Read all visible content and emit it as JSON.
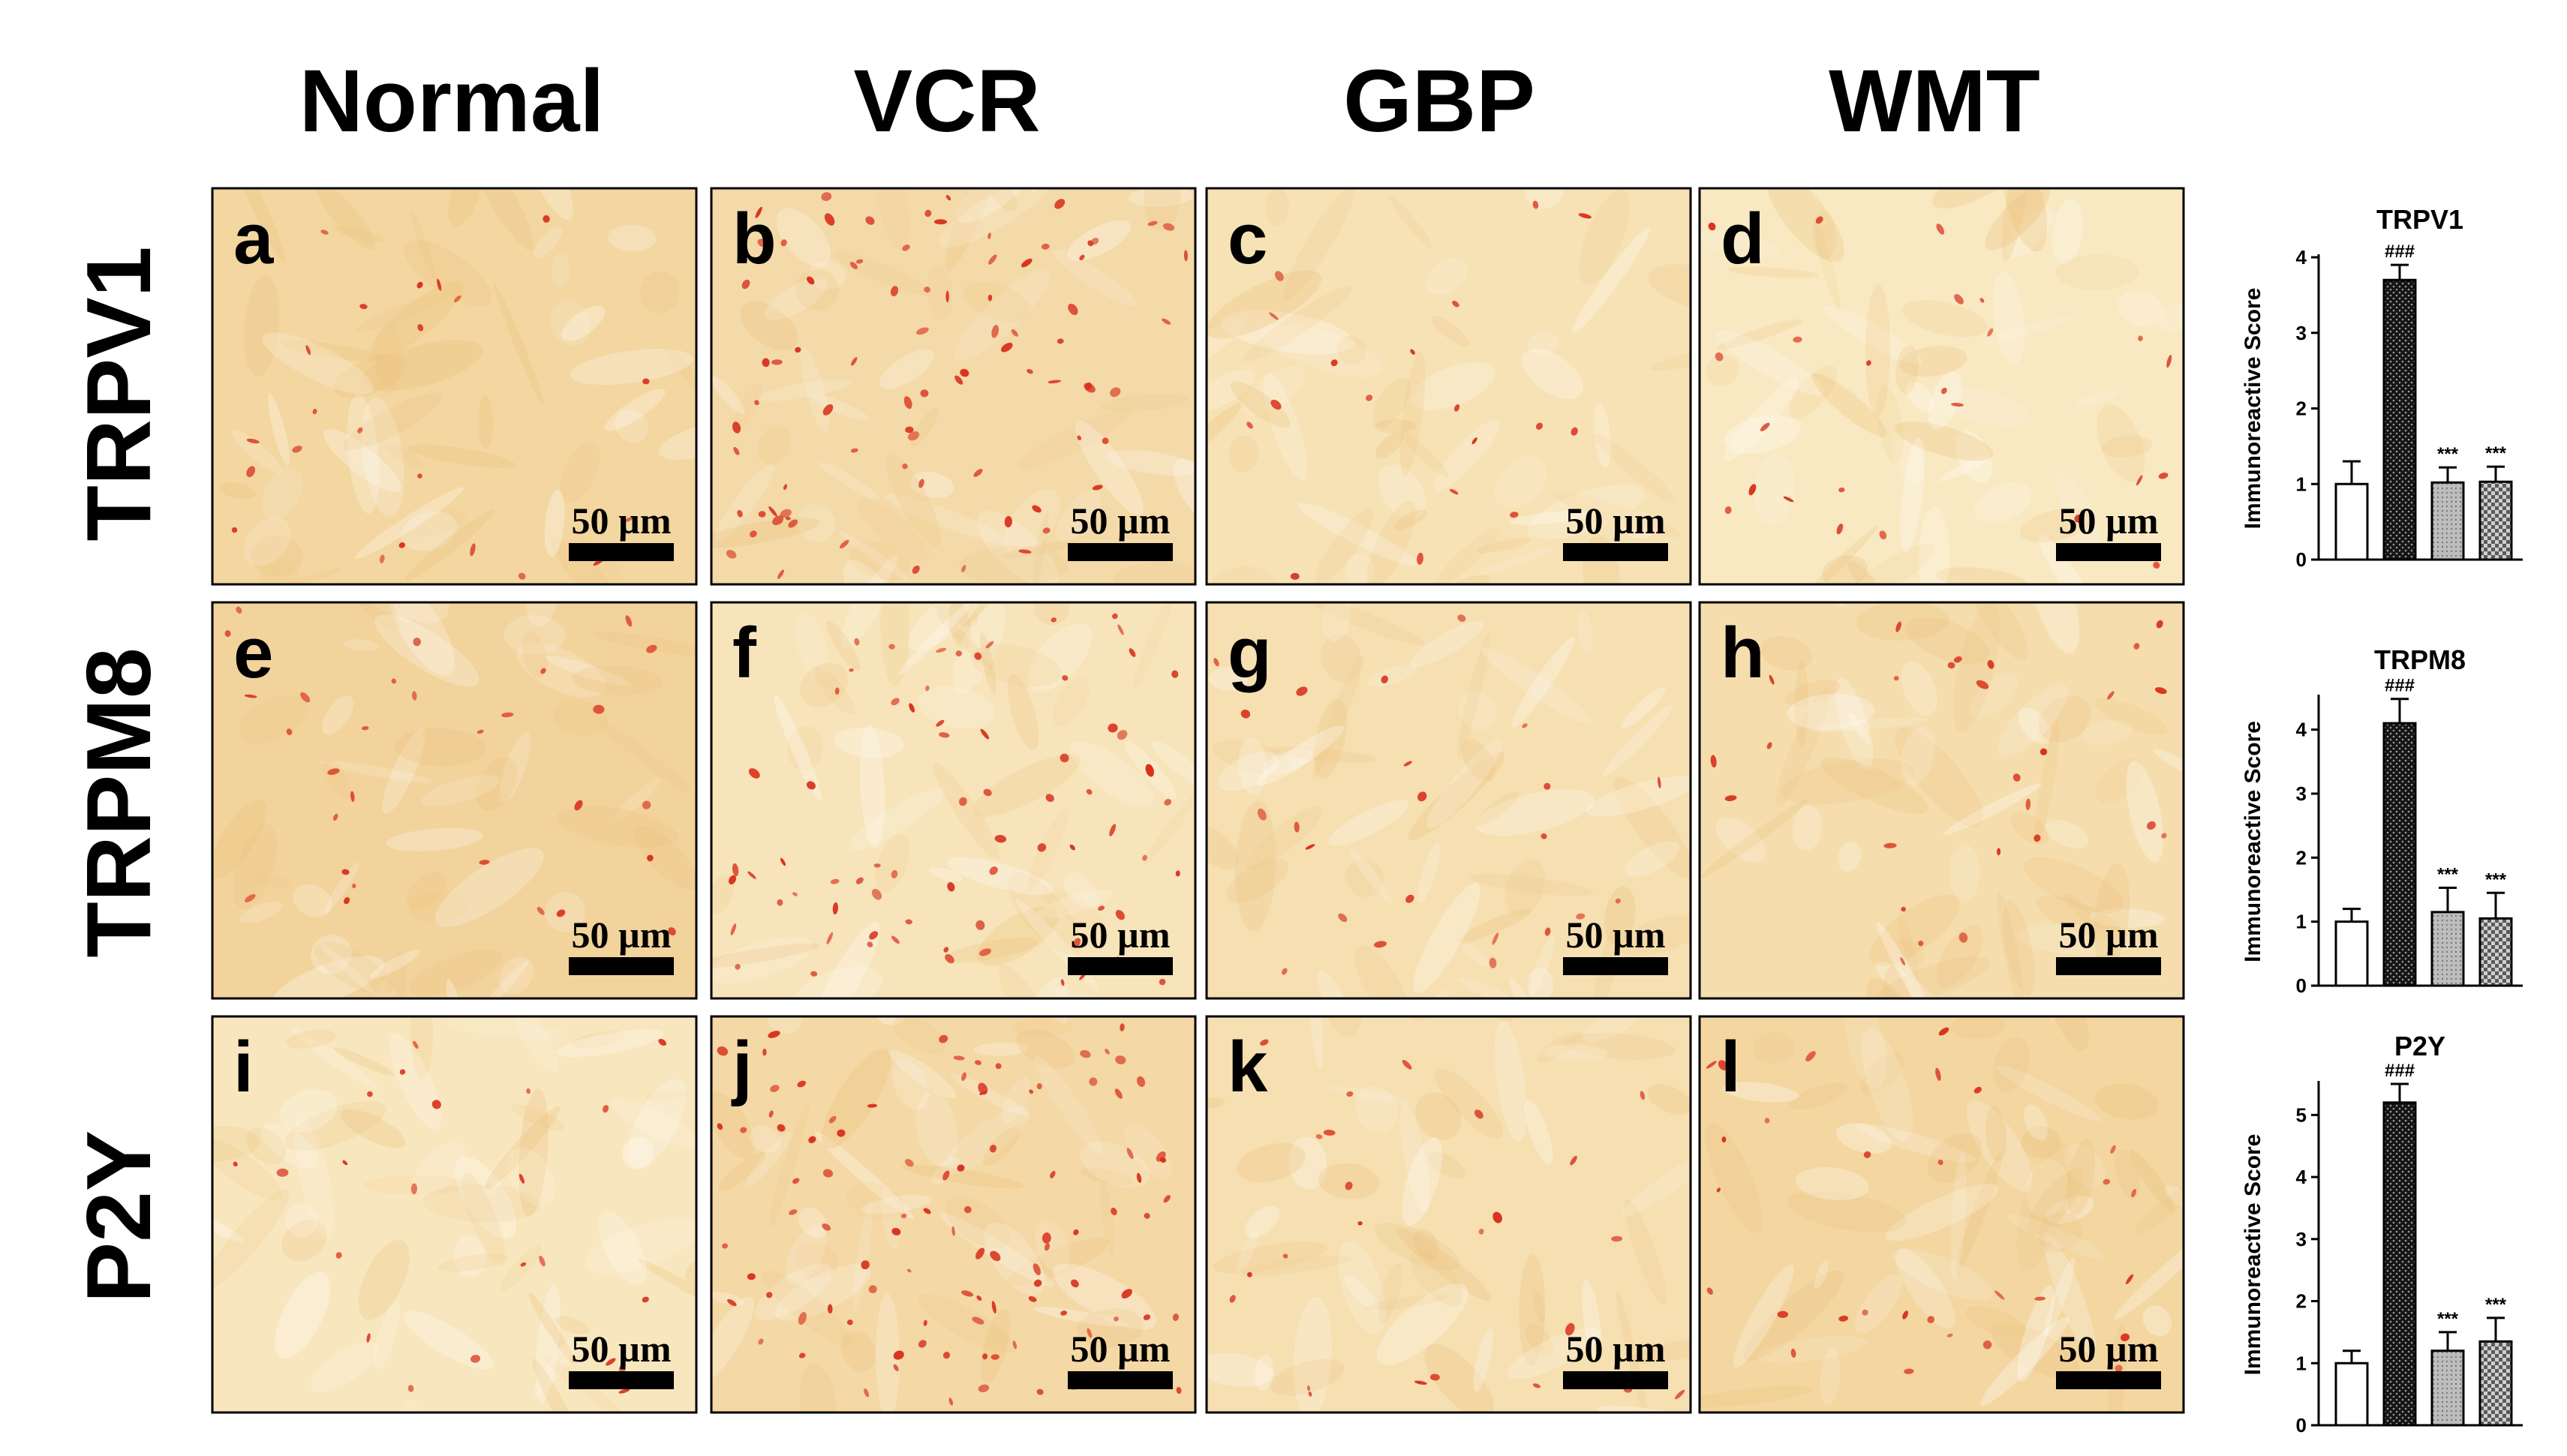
{
  "columns": [
    "Normal",
    "VCR",
    "GBP",
    "WMT"
  ],
  "rows": [
    "TRPV1",
    "TRPM8",
    "P2Y"
  ],
  "panels": [
    {
      "letter": "a",
      "scale": "50 µm",
      "density": 22,
      "tone": 0.55
    },
    {
      "letter": "b",
      "scale": "50 µm",
      "density": 80,
      "tone": 0.45
    },
    {
      "letter": "c",
      "scale": "50 µm",
      "density": 18,
      "tone": 0.3
    },
    {
      "letter": "d",
      "scale": "50 µm",
      "density": 24,
      "tone": 0.15
    },
    {
      "letter": "e",
      "scale": "50 µm",
      "density": 30,
      "tone": 0.6
    },
    {
      "letter": "f",
      "scale": "50 µm",
      "density": 70,
      "tone": 0.25
    },
    {
      "letter": "g",
      "scale": "50 µm",
      "density": 24,
      "tone": 0.35
    },
    {
      "letter": "h",
      "scale": "50 µm",
      "density": 26,
      "tone": 0.4
    },
    {
      "letter": "i",
      "scale": "50 µm",
      "density": 22,
      "tone": 0.2
    },
    {
      "letter": "j",
      "scale": "50 µm",
      "density": 95,
      "tone": 0.5
    },
    {
      "letter": "k",
      "scale": "50 µm",
      "density": 24,
      "tone": 0.35
    },
    {
      "letter": "l",
      "scale": "50 µm",
      "density": 30,
      "tone": 0.55
    }
  ],
  "colors": {
    "tissue_light": "#fbf0cf",
    "tissue_dark": "#ecc07a",
    "stain": "#d8321e",
    "bar_fill_colors": [
      "#ffffff",
      "#151515",
      "#a9a9a9",
      "#8e8e8e"
    ]
  },
  "chart_data": [
    {
      "type": "bar",
      "title": "TRPV1",
      "ylabel": "Immunoreactive Score",
      "categories": [
        "Normal",
        "VCR",
        "GBP",
        "WMT"
      ],
      "values": [
        1.0,
        3.7,
        1.02,
        1.03
      ],
      "errors": [
        0.3,
        0.2,
        0.2,
        0.2
      ],
      "annotations": [
        "",
        "###",
        "***",
        "***"
      ],
      "ylim": [
        0,
        4
      ],
      "yticks": [
        0,
        1,
        2,
        3,
        4
      ]
    },
    {
      "type": "bar",
      "title": "TRPM8",
      "ylabel": "Immunoreactive Score",
      "categories": [
        "Normal",
        "VCR",
        "GBP",
        "WMT"
      ],
      "values": [
        1.0,
        4.1,
        1.15,
        1.05
      ],
      "errors": [
        0.2,
        0.38,
        0.38,
        0.4
      ],
      "annotations": [
        "",
        "###",
        "***",
        "***"
      ],
      "ylim": [
        0,
        4.5
      ],
      "yticks": [
        0,
        1,
        2,
        3,
        4
      ]
    },
    {
      "type": "bar",
      "title": "P2Y",
      "ylabel": "Immunoreactive Score",
      "categories": [
        "Normal",
        "VCR",
        "GBP",
        "WMT"
      ],
      "values": [
        1.0,
        5.2,
        1.2,
        1.35
      ],
      "errors": [
        0.2,
        0.3,
        0.3,
        0.38
      ],
      "annotations": [
        "",
        "###",
        "***",
        "***"
      ],
      "ylim": [
        0,
        5.5
      ],
      "yticks": [
        0,
        1,
        2,
        3,
        4,
        5
      ]
    }
  ]
}
